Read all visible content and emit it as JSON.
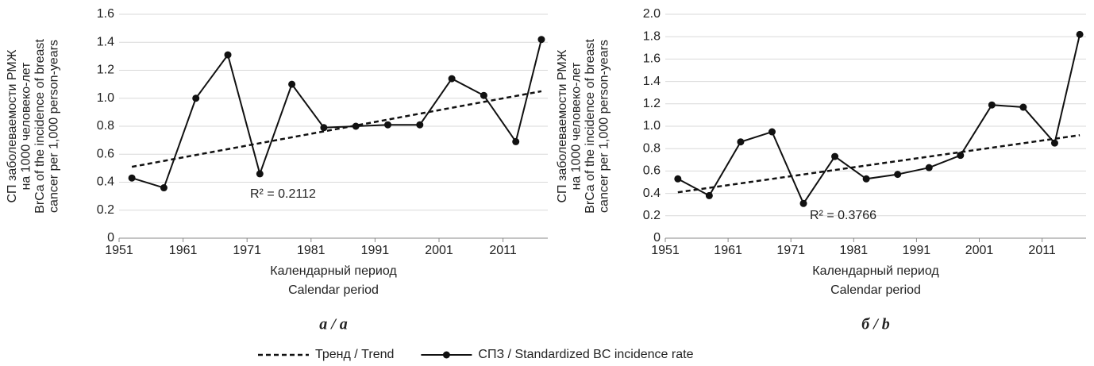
{
  "chart_data": [
    {
      "type": "line",
      "subtitle": "а / a",
      "ylabel": [
        "СП заболеваемости РМЖ",
        "на 1000 человеко-лет",
        "BrCa of the incidence of breast",
        "cancer per 1,000 person-years"
      ],
      "xlabel": [
        "Календарный период",
        "Calendar period"
      ],
      "annotation": "R² = 0.2112",
      "xlim": [
        1951,
        2018
      ],
      "xticks": [
        1951,
        1961,
        1971,
        1981,
        1991,
        2001,
        2011
      ],
      "ylim": [
        0,
        1.6
      ],
      "yticks": [
        0,
        0.2,
        0.4,
        0.6,
        0.8,
        {
          "value": 1,
          "label": "1.0"
        },
        1.2,
        1.4,
        1.6
      ],
      "grid": true,
      "series": [
        {
          "name": "Тренд / Trend",
          "color": "#111",
          "dashed": true,
          "x": [
            1953,
            2017
          ],
          "values": [
            0.51,
            1.05
          ]
        },
        {
          "name": "СПЗ / Standardized BC incidence rate",
          "color": "#111",
          "markers": true,
          "x": [
            1953,
            1958,
            1963,
            1968,
            1973,
            1978,
            1983,
            1988,
            1993,
            1998,
            2003,
            2008,
            2013,
            2017
          ],
          "values": [
            0.43,
            0.36,
            1.0,
            1.31,
            0.46,
            1.1,
            0.79,
            0.8,
            0.81,
            0.81,
            1.14,
            1.02,
            0.69,
            1.42
          ]
        }
      ]
    },
    {
      "type": "line",
      "subtitle": "б / b",
      "ylabel": [
        "СП заболеваемости РМЖ",
        "на 1000 человеко-лет",
        "BrCa of the incidence of breast",
        "cancer per 1,000 person-years"
      ],
      "xlabel": [
        "Календарный период",
        "Calendar period"
      ],
      "annotation": "R² = 0.3766",
      "xlim": [
        1951,
        2018
      ],
      "xticks": [
        1951,
        1961,
        1971,
        1981,
        1991,
        2001,
        2011
      ],
      "ylim": [
        0,
        2
      ],
      "yticks": [
        0,
        0.2,
        0.4,
        0.6,
        0.8,
        {
          "value": 1,
          "label": "1.0"
        },
        1.2,
        1.4,
        1.6,
        1.8,
        {
          "value": 2,
          "label": "2.0"
        }
      ],
      "grid": true,
      "series": [
        {
          "name": "Тренд / Trend",
          "color": "#111",
          "dashed": true,
          "x": [
            1953,
            2017
          ],
          "values": [
            0.41,
            0.92
          ]
        },
        {
          "name": "СПЗ / Standardized BC incidence rate",
          "color": "#111",
          "markers": true,
          "x": [
            1953,
            1958,
            1963,
            1968,
            1973,
            1978,
            1983,
            1988,
            1993,
            1998,
            2003,
            2008,
            2013,
            2017
          ],
          "values": [
            0.53,
            0.38,
            0.86,
            0.95,
            0.31,
            0.73,
            0.53,
            0.57,
            0.63,
            0.74,
            1.19,
            1.17,
            0.85,
            1.82
          ]
        }
      ]
    }
  ]
}
